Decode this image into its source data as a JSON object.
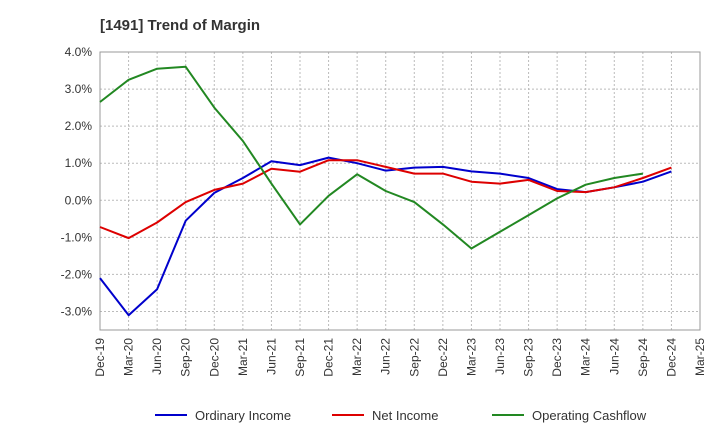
{
  "chart_data": {
    "type": "line",
    "title": "[1491]  Trend of Margin",
    "xlabel": "",
    "ylabel": "",
    "categories": [
      "Dec-19",
      "Mar-20",
      "Jun-20",
      "Sep-20",
      "Dec-20",
      "Mar-21",
      "Jun-21",
      "Sep-21",
      "Dec-21",
      "Mar-22",
      "Jun-22",
      "Sep-22",
      "Dec-22",
      "Mar-23",
      "Jun-23",
      "Sep-23",
      "Dec-23",
      "Mar-24",
      "Jun-24",
      "Sep-24",
      "Dec-24",
      "Mar-25"
    ],
    "ylim": [
      -3.5,
      4.0
    ],
    "yticks": [
      4.0,
      3.0,
      2.0,
      1.0,
      0.0,
      -1.0,
      -2.0,
      -3.0
    ],
    "ytick_labels": [
      "4.0%",
      "3.0%",
      "2.0%",
      "1.0%",
      "0.0%",
      "-1.0%",
      "-2.0%",
      "-3.0%"
    ],
    "grid": true,
    "legend_position": "bottom",
    "series": [
      {
        "name": "Ordinary Income",
        "color": "#0000cc",
        "values": [
          -2.1,
          -3.1,
          -2.4,
          -0.55,
          0.2,
          0.6,
          1.05,
          0.95,
          1.15,
          1.0,
          0.8,
          0.88,
          0.9,
          0.78,
          0.72,
          0.6,
          0.3,
          0.22,
          0.35,
          0.5,
          0.78,
          null
        ]
      },
      {
        "name": "Net Income",
        "color": "#dd0000",
        "values": [
          -0.72,
          -1.02,
          -0.6,
          -0.05,
          0.28,
          0.45,
          0.85,
          0.77,
          1.08,
          1.08,
          0.9,
          0.72,
          0.72,
          0.5,
          0.45,
          0.55,
          0.25,
          0.22,
          0.35,
          0.6,
          0.88,
          null
        ]
      },
      {
        "name": "Operating Cashflow",
        "color": "#228822",
        "values": [
          2.65,
          3.25,
          3.55,
          3.6,
          2.5,
          1.6,
          0.45,
          -0.65,
          0.12,
          0.7,
          0.25,
          -0.05,
          -0.65,
          -1.3,
          -0.85,
          -0.4,
          0.05,
          0.42,
          0.6,
          0.72,
          null,
          null
        ]
      }
    ]
  }
}
